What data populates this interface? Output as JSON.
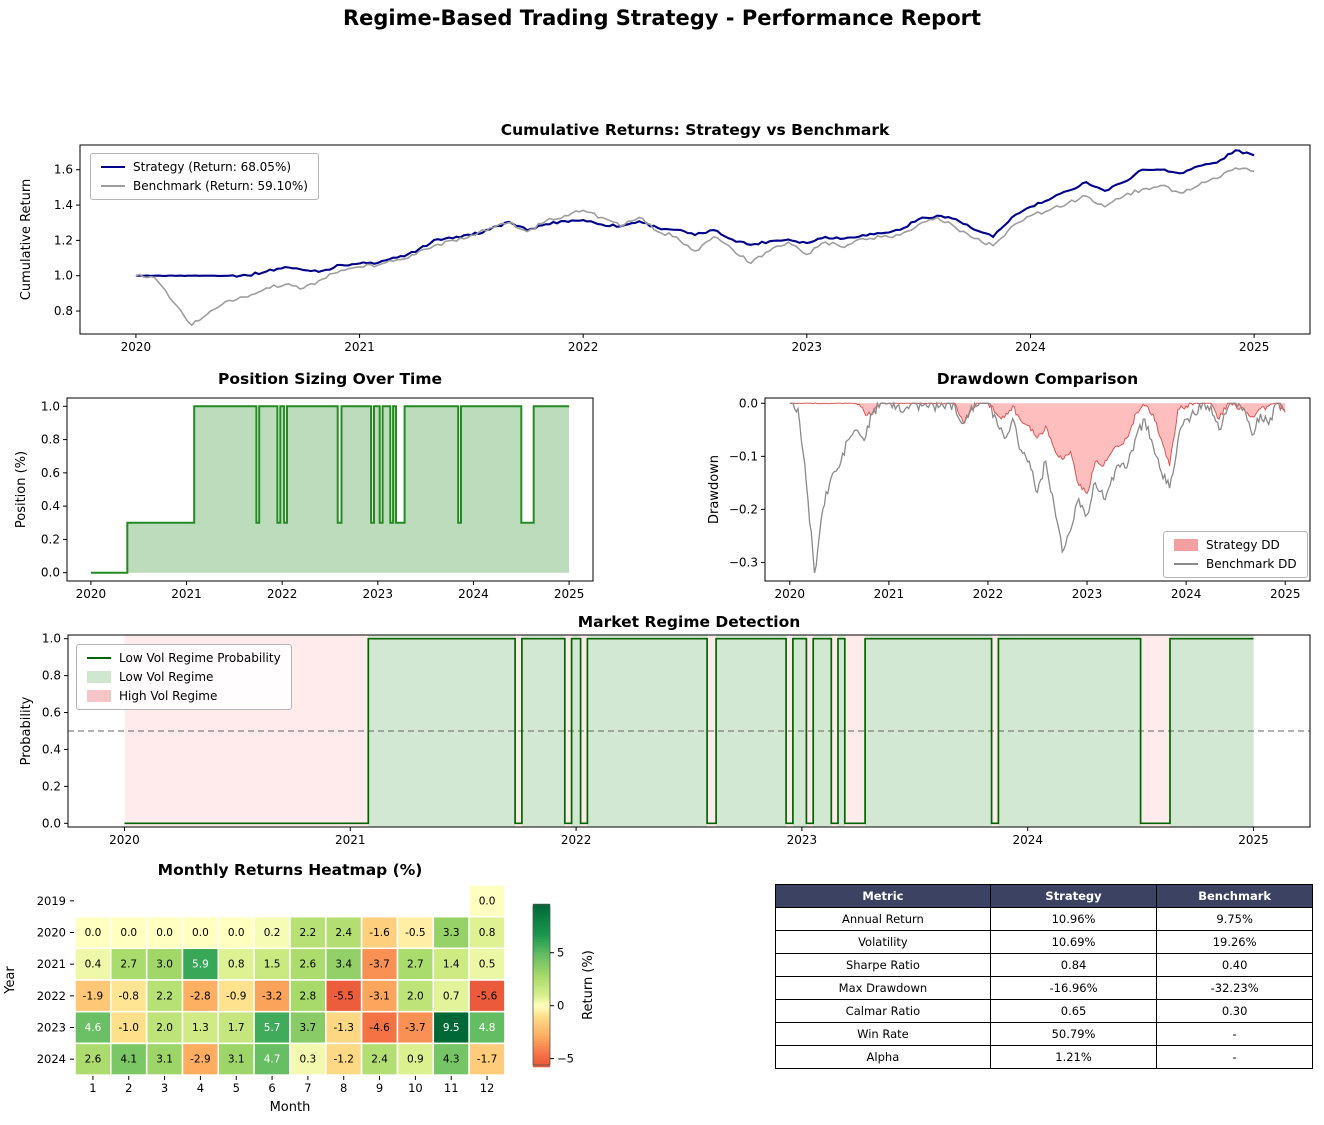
{
  "page": {
    "title": "Regime-Based Trading Strategy - Performance Report"
  },
  "chart_data": [
    {
      "id": "cumulative_returns",
      "type": "line",
      "title": "Cumulative Returns: Strategy vs Benchmark",
      "ylabel": "Cumulative Return",
      "xlim": [
        2019.75,
        2025.25
      ],
      "ylim": [
        0.67,
        1.74
      ],
      "xticks": [
        2020,
        2021,
        2022,
        2023,
        2024,
        2025
      ],
      "yticks": [
        0.8,
        1.0,
        1.2,
        1.4,
        1.6
      ],
      "x": [
        2020,
        2020.083,
        2020.167,
        2020.25,
        2020.333,
        2020.417,
        2020.5,
        2020.583,
        2020.667,
        2020.75,
        2020.833,
        2020.917,
        2021,
        2021.083,
        2021.167,
        2021.25,
        2021.333,
        2021.417,
        2021.5,
        2021.583,
        2021.667,
        2021.75,
        2021.833,
        2021.917,
        2022,
        2022.083,
        2022.167,
        2022.25,
        2022.333,
        2022.417,
        2022.5,
        2022.583,
        2022.667,
        2022.75,
        2022.833,
        2022.917,
        2023,
        2023.083,
        2023.167,
        2023.25,
        2023.333,
        2023.417,
        2023.5,
        2023.583,
        2023.667,
        2023.75,
        2023.833,
        2023.917,
        2024,
        2024.083,
        2024.167,
        2024.25,
        2024.333,
        2024.417,
        2024.5,
        2024.583,
        2024.667,
        2024.75,
        2024.833,
        2024.917,
        2025
      ],
      "series": [
        {
          "name": "Strategy (Return: 68.05%)",
          "color": "#00008b",
          "values": [
            1.0,
            1.0,
            1.0,
            1.0,
            1.0,
            1.0,
            1.002,
            1.024,
            1.049,
            1.032,
            1.027,
            1.061,
            1.069,
            1.073,
            1.102,
            1.135,
            1.202,
            1.212,
            1.23,
            1.262,
            1.305,
            1.257,
            1.291,
            1.309,
            1.315,
            1.29,
            1.28,
            1.308,
            1.271,
            1.26,
            1.23,
            1.258,
            1.205,
            1.175,
            1.195,
            1.205,
            1.185,
            1.22,
            1.21,
            1.23,
            1.24,
            1.26,
            1.32,
            1.34,
            1.32,
            1.26,
            1.22,
            1.33,
            1.39,
            1.43,
            1.48,
            1.53,
            1.48,
            1.53,
            1.6,
            1.6,
            1.58,
            1.62,
            1.64,
            1.71,
            1.681
          ]
        },
        {
          "name": "Benchmark (Return: 59.10%)",
          "color": "#9e9e9e",
          "values": [
            1.0,
            0.99,
            0.85,
            0.72,
            0.8,
            0.86,
            0.88,
            0.93,
            0.95,
            0.93,
            0.98,
            1.03,
            1.05,
            1.06,
            1.09,
            1.12,
            1.17,
            1.2,
            1.23,
            1.27,
            1.3,
            1.25,
            1.31,
            1.34,
            1.37,
            1.33,
            1.28,
            1.33,
            1.25,
            1.22,
            1.14,
            1.22,
            1.15,
            1.07,
            1.14,
            1.19,
            1.12,
            1.19,
            1.16,
            1.21,
            1.22,
            1.23,
            1.29,
            1.33,
            1.27,
            1.21,
            1.17,
            1.28,
            1.34,
            1.37,
            1.41,
            1.45,
            1.39,
            1.45,
            1.49,
            1.51,
            1.47,
            1.51,
            1.55,
            1.61,
            1.591
          ]
        }
      ]
    },
    {
      "id": "position_sizing",
      "type": "area",
      "title": "Position Sizing Over Time",
      "ylabel": "Position (%)",
      "xlim": [
        2019.75,
        2025.25
      ],
      "ylim": [
        -0.05,
        1.05
      ],
      "xticks": [
        2020,
        2021,
        2022,
        2023,
        2024,
        2025
      ],
      "yticks": [
        0.0,
        0.2,
        0.4,
        0.6,
        0.8,
        1.0
      ],
      "colors": {
        "line": "#228b22",
        "fill": "rgba(34,139,34,0.3)"
      },
      "steps": [
        [
          2020.0,
          0.0
        ],
        [
          2020.38,
          0.3
        ],
        [
          2021.08,
          1.0
        ],
        [
          2021.73,
          0.3
        ],
        [
          2021.76,
          1.0
        ],
        [
          2021.95,
          0.3
        ],
        [
          2021.98,
          1.0
        ],
        [
          2022.02,
          0.3
        ],
        [
          2022.05,
          1.0
        ],
        [
          2022.58,
          0.3
        ],
        [
          2022.62,
          1.0
        ],
        [
          2022.93,
          0.3
        ],
        [
          2022.96,
          1.0
        ],
        [
          2023.02,
          0.3
        ],
        [
          2023.05,
          1.0
        ],
        [
          2023.13,
          0.3
        ],
        [
          2023.16,
          1.0
        ],
        [
          2023.19,
          0.3
        ],
        [
          2023.28,
          1.0
        ],
        [
          2023.84,
          0.3
        ],
        [
          2023.87,
          1.0
        ],
        [
          2024.5,
          0.3
        ],
        [
          2024.63,
          1.0
        ],
        [
          2025.0,
          1.0
        ]
      ]
    },
    {
      "id": "drawdown_comparison",
      "type": "area",
      "title": "Drawdown Comparison",
      "ylabel": "Drawdown",
      "xlim": [
        2019.75,
        2025.25
      ],
      "ylim": [
        -0.335,
        0.01
      ],
      "xticks": [
        2020,
        2021,
        2022,
        2023,
        2024,
        2025
      ],
      "yticks": [
        0.0,
        -0.1,
        -0.2,
        -0.3
      ],
      "legend": [
        "Strategy DD",
        "Benchmark DD"
      ],
      "colors": {
        "strategy_line": "rgba(215,60,60,0.85)",
        "strategy_fill": "rgba(255,70,70,0.35)",
        "strategy_fill_legend": "#f4a0a0",
        "benchmark_line": "#8a8a8a"
      },
      "x": [
        2020,
        2020.083,
        2020.167,
        2020.25,
        2020.333,
        2020.417,
        2020.5,
        2020.583,
        2020.667,
        2020.75,
        2020.833,
        2020.917,
        2021,
        2021.083,
        2021.167,
        2021.25,
        2021.333,
        2021.417,
        2021.5,
        2021.583,
        2021.667,
        2021.75,
        2021.833,
        2021.917,
        2022,
        2022.083,
        2022.167,
        2022.25,
        2022.333,
        2022.417,
        2022.5,
        2022.583,
        2022.667,
        2022.75,
        2022.833,
        2022.917,
        2023,
        2023.083,
        2023.167,
        2023.25,
        2023.333,
        2023.417,
        2023.5,
        2023.583,
        2023.667,
        2023.75,
        2023.833,
        2023.917,
        2024,
        2024.083,
        2024.167,
        2024.25,
        2024.333,
        2024.417,
        2024.5,
        2024.583,
        2024.667,
        2024.75,
        2024.833,
        2024.917,
        2025
      ],
      "strategy_dd": [
        0,
        0,
        0,
        0,
        0,
        0,
        0,
        0,
        0,
        -0.016,
        -0.021,
        0,
        0,
        0,
        0,
        0,
        0,
        0,
        0,
        0,
        0,
        -0.037,
        -0.011,
        0,
        0,
        -0.019,
        -0.027,
        -0.005,
        -0.033,
        -0.042,
        -0.065,
        -0.043,
        -0.084,
        -0.106,
        -0.091,
        -0.155,
        -0.17,
        -0.11,
        -0.118,
        -0.092,
        -0.08,
        -0.062,
        -0.018,
        -0.005,
        -0.02,
        -0.068,
        -0.118,
        -0.012,
        -0.005,
        0,
        0,
        0,
        -0.03,
        0,
        -0.004,
        -0.01,
        -0.025,
        -0.01,
        -0.005,
        0,
        -0.017
      ],
      "benchmark_dd": [
        0,
        -0.01,
        -0.15,
        -0.32,
        -0.2,
        -0.14,
        -0.12,
        -0.07,
        -0.05,
        -0.07,
        -0.02,
        0,
        0,
        -0.005,
        -0.01,
        0,
        -0.005,
        0,
        -0.008,
        0,
        -0.004,
        -0.038,
        -0.005,
        0,
        0,
        -0.029,
        -0.066,
        -0.029,
        -0.088,
        -0.109,
        -0.168,
        -0.109,
        -0.19,
        -0.28,
        -0.24,
        -0.18,
        -0.21,
        -0.15,
        -0.18,
        -0.14,
        -0.12,
        -0.11,
        -0.06,
        -0.03,
        -0.08,
        -0.13,
        -0.16,
        -0.07,
        -0.03,
        -0.02,
        0,
        -0.005,
        -0.05,
        -0.01,
        0,
        -0.01,
        -0.06,
        -0.02,
        -0.04,
        0,
        -0.012
      ]
    },
    {
      "id": "market_regime_detection",
      "type": "area",
      "title": "Market Regime Detection",
      "ylabel": "Probability",
      "xlim": [
        2019.75,
        2025.25
      ],
      "ylim": [
        -0.02,
        1.02
      ],
      "xticks": [
        2020,
        2021,
        2022,
        2023,
        2024,
        2025
      ],
      "yticks": [
        0.0,
        0.2,
        0.4,
        0.6,
        0.8,
        1.0
      ],
      "threshold": 0.5,
      "legend": [
        "Low Vol Regime Probability",
        "Low Vol Regime",
        "High Vol Regime"
      ],
      "colors": {
        "line": "#006400",
        "low_fill": "rgba(34,139,34,0.2)",
        "high_fill": "rgba(255,60,60,0.1)",
        "low_fill_legend": "#cfe6cf",
        "high_fill_legend": "#f6c6c6",
        "threshold": "#666666"
      },
      "low_vol_segments": [
        [
          2021.08,
          2021.73
        ],
        [
          2021.76,
          2021.95
        ],
        [
          2021.98,
          2022.02
        ],
        [
          2022.05,
          2022.58
        ],
        [
          2022.62,
          2022.93
        ],
        [
          2022.96,
          2023.02
        ],
        [
          2023.05,
          2023.13
        ],
        [
          2023.16,
          2023.19
        ],
        [
          2023.28,
          2023.84
        ],
        [
          2023.87,
          2024.5
        ],
        [
          2024.63,
          2025.0
        ]
      ],
      "high_vol_segments": [
        [
          2020.0,
          2021.08
        ],
        [
          2021.73,
          2021.76
        ],
        [
          2021.95,
          2021.98
        ],
        [
          2022.02,
          2022.05
        ],
        [
          2022.58,
          2022.62
        ],
        [
          2022.93,
          2022.96
        ],
        [
          2023.02,
          2023.05
        ],
        [
          2023.13,
          2023.16
        ],
        [
          2023.19,
          2023.28
        ],
        [
          2023.84,
          2023.87
        ],
        [
          2024.5,
          2024.63
        ]
      ]
    },
    {
      "id": "monthly_returns_heatmap",
      "type": "heatmap",
      "title": "Monthly Returns Heatmap (%)",
      "xlabel": "Month",
      "ylabel": "Year",
      "colorbar_label": "Return (%)",
      "years": [
        2019,
        2020,
        2021,
        2022,
        2023,
        2024
      ],
      "months": [
        1,
        2,
        3,
        4,
        5,
        6,
        7,
        8,
        9,
        10,
        11,
        12
      ],
      "values": [
        [
          null,
          null,
          null,
          null,
          null,
          null,
          null,
          null,
          null,
          null,
          null,
          0.0
        ],
        [
          0.0,
          0.0,
          0.0,
          0.0,
          0.0,
          0.2,
          2.2,
          2.4,
          -1.6,
          -0.5,
          3.3,
          0.8
        ],
        [
          0.4,
          2.7,
          3.0,
          5.9,
          0.8,
          1.5,
          2.6,
          3.4,
          -3.7,
          2.7,
          1.4,
          0.5
        ],
        [
          -1.9,
          -0.8,
          2.2,
          -2.8,
          -0.9,
          -3.2,
          2.8,
          -5.5,
          -3.1,
          2.0,
          0.7,
          -5.6
        ],
        [
          4.6,
          -1.0,
          2.0,
          1.3,
          1.7,
          5.7,
          3.7,
          -1.3,
          -4.6,
          -3.7,
          9.5,
          4.8
        ],
        [
          2.6,
          4.1,
          3.1,
          -2.9,
          3.1,
          4.7,
          0.3,
          -1.2,
          2.4,
          0.9,
          4.3,
          -1.7
        ]
      ],
      "vmin": -9.5,
      "vmax": 9.5,
      "cbar_min": -5.6,
      "cbar_max": 9.5,
      "cbar_ticks": [
        5,
        0,
        -5
      ]
    }
  ],
  "table": {
    "columns": [
      "Metric",
      "Strategy",
      "Benchmark"
    ],
    "header_bg": "#3b4262",
    "header_color": "#ffffff",
    "rows": [
      [
        "Annual Return",
        "10.96%",
        "9.75%"
      ],
      [
        "Volatility",
        "10.69%",
        "19.26%"
      ],
      [
        "Sharpe Ratio",
        "0.84",
        "0.40"
      ],
      [
        "Max Drawdown",
        "-16.96%",
        "-32.23%"
      ],
      [
        "Calmar Ratio",
        "0.65",
        "0.30"
      ],
      [
        "Win Rate",
        "50.79%",
        "-"
      ],
      [
        "Alpha",
        "1.21%",
        "-"
      ]
    ]
  }
}
